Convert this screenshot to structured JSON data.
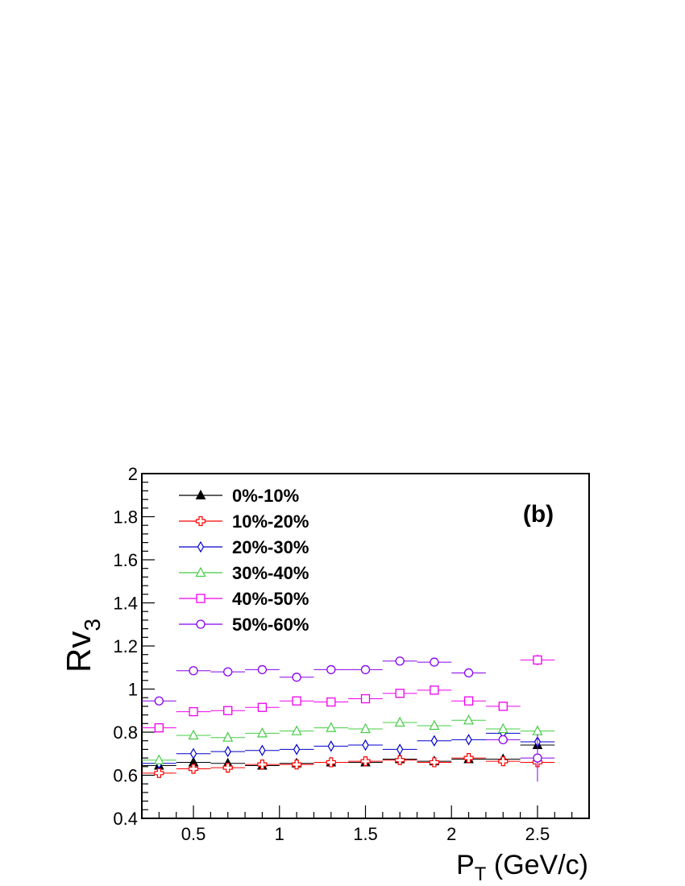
{
  "chart_data": {
    "type": "scatter",
    "title": "",
    "panel_label": "(b)",
    "xlabel": {
      "main": "P",
      "sub": "T",
      "rest": " (GeV/c)"
    },
    "ylabel": {
      "main": "Rv",
      "sub": "3"
    },
    "xlim": [
      0.2,
      2.8
    ],
    "ylim": [
      0.4,
      2.0
    ],
    "x_ticks": [
      0.5,
      1,
      1.5,
      2,
      2.5
    ],
    "x_tick_labels": [
      "0.5",
      "1",
      "1.5",
      "2",
      "2.5"
    ],
    "y_ticks": [
      0.4,
      0.6,
      0.8,
      1.0,
      1.2,
      1.4,
      1.6,
      1.8,
      2.0
    ],
    "y_tick_labels": [
      "0.4",
      "0.6",
      "0.8",
      "1",
      "1.2",
      "1.4",
      "1.6",
      "1.8",
      "2"
    ],
    "grid": false,
    "legend_position": "top-left",
    "x_half_width": 0.1,
    "series": [
      {
        "name": "0%-10%",
        "color": "#000000",
        "marker": "triangle-filled",
        "x": [
          0.3,
          0.5,
          0.7,
          0.9,
          1.1,
          1.3,
          1.5,
          1.7,
          1.9,
          2.1,
          2.3,
          2.5
        ],
        "y": [
          0.645,
          0.66,
          0.655,
          0.645,
          0.655,
          0.66,
          0.66,
          0.675,
          0.665,
          0.675,
          0.675,
          0.74
        ],
        "yerr": [
          0.005,
          0.005,
          0.005,
          0.005,
          0.005,
          0.005,
          0.005,
          0.006,
          0.006,
          0.007,
          0.008,
          0.015
        ]
      },
      {
        "name": "10%-20%",
        "color": "#ff0000",
        "marker": "cross-open",
        "x": [
          0.3,
          0.5,
          0.7,
          0.9,
          1.1,
          1.3,
          1.5,
          1.7,
          1.9,
          2.1,
          2.3,
          2.5
        ],
        "y": [
          0.61,
          0.63,
          0.635,
          0.65,
          0.65,
          0.66,
          0.665,
          0.67,
          0.66,
          0.68,
          0.665,
          0.66
        ],
        "yerr": [
          0.005,
          0.005,
          0.005,
          0.005,
          0.005,
          0.005,
          0.005,
          0.006,
          0.006,
          0.007,
          0.008,
          0.015
        ]
      },
      {
        "name": "20%-30%",
        "color": "#0000cc",
        "marker": "diamond-open",
        "x": [
          0.3,
          0.5,
          0.7,
          0.9,
          1.1,
          1.3,
          1.5,
          1.7,
          1.9,
          2.1,
          2.3,
          2.5
        ],
        "y": [
          0.655,
          0.7,
          0.71,
          0.715,
          0.72,
          0.735,
          0.74,
          0.72,
          0.76,
          0.765,
          0.795,
          0.755
        ],
        "yerr": [
          0.005,
          0.005,
          0.005,
          0.005,
          0.005,
          0.006,
          0.006,
          0.006,
          0.007,
          0.008,
          0.01,
          0.02
        ]
      },
      {
        "name": "30%-40%",
        "color": "#44cc44",
        "marker": "triangle-open",
        "x": [
          0.3,
          0.5,
          0.7,
          0.9,
          1.1,
          1.3,
          1.5,
          1.7,
          1.9,
          2.1,
          2.3,
          2.5
        ],
        "y": [
          0.67,
          0.785,
          0.775,
          0.795,
          0.805,
          0.82,
          0.815,
          0.845,
          0.83,
          0.855,
          0.815,
          0.805
        ],
        "yerr": [
          0.005,
          0.005,
          0.005,
          0.005,
          0.006,
          0.006,
          0.006,
          0.007,
          0.008,
          0.009,
          0.01,
          0.02
        ]
      },
      {
        "name": "40%-50%",
        "color": "#ee00ee",
        "marker": "square-open",
        "x": [
          0.3,
          0.5,
          0.7,
          0.9,
          1.1,
          1.3,
          1.5,
          1.7,
          1.9,
          2.1,
          2.3,
          2.5
        ],
        "y": [
          0.82,
          0.895,
          0.9,
          0.915,
          0.945,
          0.94,
          0.955,
          0.98,
          0.995,
          0.945,
          0.92,
          1.135
        ],
        "yerr": [
          0.005,
          0.005,
          0.005,
          0.006,
          0.006,
          0.006,
          0.007,
          0.008,
          0.009,
          0.01,
          0.012,
          0.025
        ]
      },
      {
        "name": "50%-60%",
        "color": "#8800ee",
        "marker": "circle-open",
        "x": [
          0.3,
          0.5,
          0.7,
          0.9,
          1.1,
          1.3,
          1.5,
          1.7,
          1.9,
          2.1,
          2.3,
          2.5
        ],
        "y": [
          0.945,
          1.085,
          1.08,
          1.09,
          1.055,
          1.09,
          1.09,
          1.13,
          1.125,
          1.075,
          0.765,
          0.68
        ],
        "yerr": [
          0.005,
          0.006,
          0.006,
          0.007,
          0.007,
          0.008,
          0.008,
          0.009,
          0.01,
          0.012,
          0.02,
          0.11
        ]
      }
    ]
  }
}
